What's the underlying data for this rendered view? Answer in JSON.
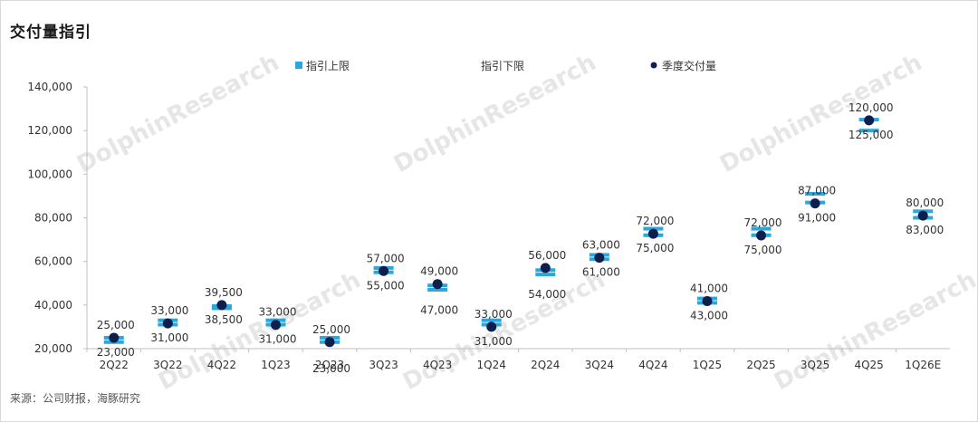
{
  "title": "交付量指引",
  "source": "来源：公司财报，海豚研究",
  "watermark": "DolphinResearch",
  "colors": {
    "upper": "#29a8e0",
    "lower": "#29a8e0",
    "actual": "#0d1f4d",
    "axis": "#bfbfbf",
    "text": "#333333"
  },
  "chart_data": {
    "type": "scatter",
    "categories": [
      "2Q22",
      "3Q22",
      "4Q22",
      "1Q23",
      "2Q23",
      "3Q23",
      "4Q23",
      "1Q24",
      "2Q24",
      "3Q24",
      "4Q24",
      "1Q25",
      "2Q25",
      "3Q25",
      "4Q25",
      "1Q26E"
    ],
    "ylim": [
      20000,
      140000
    ],
    "yticks": [
      "20,000",
      "40,000",
      "60,000",
      "80,000",
      "100,000",
      "120,000",
      "140,000"
    ],
    "ytick_values": [
      20000,
      40000,
      60000,
      80000,
      100000,
      120000,
      140000
    ],
    "series": [
      {
        "name": "指引上限",
        "marker": "dash",
        "values": [
          25000,
          33000,
          39500,
          33000,
          25000,
          57000,
          49000,
          33000,
          56000,
          63000,
          75000,
          43000,
          75000,
          91000,
          125000,
          83000
        ]
      },
      {
        "name": "指引下限",
        "marker": "dash",
        "values": [
          23000,
          31000,
          38500,
          31000,
          23000,
          55000,
          47000,
          31000,
          54000,
          61000,
          72000,
          41000,
          72000,
          87000,
          120000,
          80000
        ]
      },
      {
        "name": "季度交付量",
        "marker": "dot",
        "values": [
          25000,
          31600,
          40000,
          30900,
          23000,
          55600,
          49600,
          30000,
          57000,
          61700,
          72700,
          41800,
          71900,
          86600,
          124700,
          81000
        ]
      }
    ],
    "labels": [
      {
        "category": "2Q22",
        "text": "25,000",
        "side": "right",
        "pos": "above"
      },
      {
        "category": "2Q22",
        "text": "23,000",
        "side": "right",
        "pos": "below"
      },
      {
        "category": "3Q22",
        "text": "33,000",
        "side": "right",
        "pos": "above"
      },
      {
        "category": "3Q22",
        "text": "31,000",
        "side": "right",
        "pos": "below"
      },
      {
        "category": "4Q22",
        "text": "39,500",
        "side": "right",
        "pos": "above"
      },
      {
        "category": "4Q22",
        "text": "38,500",
        "side": "right",
        "pos": "below"
      },
      {
        "category": "1Q23",
        "text": "33,000",
        "side": "right",
        "pos": "above"
      },
      {
        "category": "1Q23",
        "text": "31,000",
        "side": "right",
        "pos": "below"
      },
      {
        "category": "2Q23",
        "text": "25,000",
        "side": "right",
        "pos": "above"
      },
      {
        "category": "2Q23",
        "text": "23,000",
        "side": "right",
        "pos": "far-below"
      },
      {
        "category": "3Q23",
        "text": "57,000",
        "side": "right",
        "pos": "above"
      },
      {
        "category": "3Q23",
        "text": "55,000",
        "side": "right",
        "pos": "below"
      },
      {
        "category": "4Q23",
        "text": "49,000",
        "side": "right",
        "pos": "above"
      },
      {
        "category": "4Q23",
        "text": "47,000",
        "side": "right",
        "pos": "far-below"
      },
      {
        "category": "1Q24",
        "text": "33,000",
        "side": "right",
        "pos": "above"
      },
      {
        "category": "1Q24",
        "text": "31,000",
        "side": "right",
        "pos": "below"
      },
      {
        "category": "2Q24",
        "text": "56,000",
        "side": "right",
        "pos": "above"
      },
      {
        "category": "2Q24",
        "text": "54,000",
        "side": "right",
        "pos": "far-below"
      },
      {
        "category": "3Q24",
        "text": "63,000",
        "side": "right",
        "pos": "above"
      },
      {
        "category": "3Q24",
        "text": "61,000",
        "side": "right",
        "pos": "below"
      },
      {
        "category": "4Q24",
        "text": "72,000",
        "side": "right",
        "pos": "above"
      },
      {
        "category": "4Q24",
        "text": "75,000",
        "side": "right",
        "pos": "below"
      },
      {
        "category": "1Q25",
        "text": "41,000",
        "side": "right",
        "pos": "above"
      },
      {
        "category": "1Q25",
        "text": "43,000",
        "side": "right",
        "pos": "below"
      },
      {
        "category": "2Q25",
        "text": "72,000",
        "side": "right",
        "pos": "above"
      },
      {
        "category": "2Q25",
        "text": "75,000",
        "side": "right",
        "pos": "below"
      },
      {
        "category": "3Q25",
        "text": "87,000",
        "side": "right",
        "pos": "above"
      },
      {
        "category": "3Q25",
        "text": "91,000",
        "side": "right",
        "pos": "below"
      },
      {
        "category": "4Q25",
        "text": "120,000",
        "side": "right",
        "pos": "above"
      },
      {
        "category": "4Q25",
        "text": "125,000",
        "side": "right",
        "pos": "below"
      },
      {
        "category": "1Q26E",
        "text": "80,000",
        "side": "right",
        "pos": "above"
      },
      {
        "category": "1Q26E",
        "text": "83,000",
        "side": "right",
        "pos": "below"
      }
    ],
    "legend_position": "top",
    "grid": false
  }
}
